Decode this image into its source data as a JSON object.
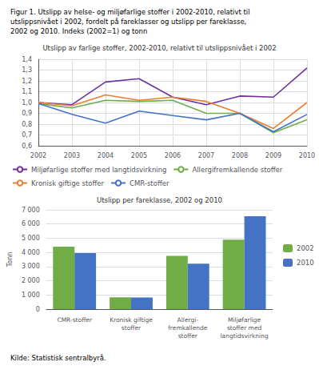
{
  "title": "Figur 1. Utslipp av helse- og miljøfarlige stoffer i 2002-2010, relativt til\nutslippsnivået i 2002, fordelt på fareklasser og utslipp per fareklasse,\n2002 og 2010. Indeks (2002=1) og tonn",
  "annotations": [
    "Kilde: Statistisk sentralbyrå."
  ],
  "chart_data": [
    {
      "type": "line",
      "title": "Utslipp av farlige stoffer, 2002-2010, relativt til utslippsnivået i 2002",
      "x": [
        2002,
        2003,
        2004,
        2005,
        2006,
        2007,
        2008,
        2009,
        2010
      ],
      "xlim": [
        2002,
        2010
      ],
      "xticks": [
        2002,
        2003,
        2004,
        2005,
        2006,
        2007,
        2008,
        2009,
        2010
      ],
      "ylim": [
        0.6,
        1.4
      ],
      "yticks": [
        {
          "value": 0.6,
          "label": "0,6"
        },
        {
          "value": 0.7,
          "label": "0,7"
        },
        {
          "value": 0.8,
          "label": "0,8"
        },
        {
          "value": 0.9,
          "label": "0,9"
        },
        {
          "value": 1.0,
          "label": "1,0"
        },
        {
          "value": 1.1,
          "label": "1,1"
        },
        {
          "value": 1.2,
          "label": "1,2"
        },
        {
          "value": 1.3,
          "label": "1,3"
        },
        {
          "value": 1.4,
          "label": "1,4"
        }
      ],
      "grid": true,
      "legend": "bottom",
      "series": [
        {
          "name": "Miljøfarlige stoffer med langtidsvirkning",
          "color": "#7030A0",
          "values": [
            1.0,
            0.98,
            1.19,
            1.22,
            1.05,
            0.98,
            1.06,
            1.05,
            1.32
          ]
        },
        {
          "name": "Allergifremkallende stoffer",
          "color": "#70AD47",
          "values": [
            0.99,
            0.95,
            1.02,
            1.01,
            1.02,
            0.9,
            0.9,
            0.72,
            0.84
          ]
        },
        {
          "name": "Kronisk giftige stoffer",
          "color": "#ED7D31",
          "values": [
            1.0,
            0.97,
            1.07,
            1.02,
            1.05,
            1.01,
            0.9,
            0.76,
            1.0
          ]
        },
        {
          "name": "CMR-stoffer",
          "color": "#4472C4",
          "values": [
            0.99,
            0.89,
            0.81,
            0.92,
            0.88,
            0.84,
            0.9,
            0.73,
            0.89
          ]
        }
      ]
    },
    {
      "type": "bar",
      "title": "Utslipp per fareklasse, 2002 og 2010",
      "ylabel": "Tonn",
      "categories": [
        "CMR-stoffer",
        "Kronisk giftige\nstoffer",
        "Allergi-\nfremkallende\nstoffer",
        "Miljøfarlige\nstoffer med\nlangtidsvirkning"
      ],
      "ylim": [
        0,
        7000
      ],
      "yticks": [
        0,
        {
          "value": 1000,
          "label": "1 000"
        },
        {
          "value": 2000,
          "label": "2 000"
        },
        {
          "value": 3000,
          "label": "3 000"
        },
        {
          "value": 4000,
          "label": "4 000"
        },
        {
          "value": 5000,
          "label": "5 000"
        },
        {
          "value": 6000,
          "label": "6 000"
        },
        {
          "value": 7000,
          "label": "7 000"
        }
      ],
      "grid": "y",
      "legend": "right",
      "series": [
        {
          "name": "2002",
          "color": "#70AD47",
          "values": [
            4400,
            830,
            3750,
            4900
          ]
        },
        {
          "name": "2010",
          "color": "#4472C4",
          "values": [
            3950,
            820,
            3200,
            6550
          ]
        }
      ]
    }
  ]
}
